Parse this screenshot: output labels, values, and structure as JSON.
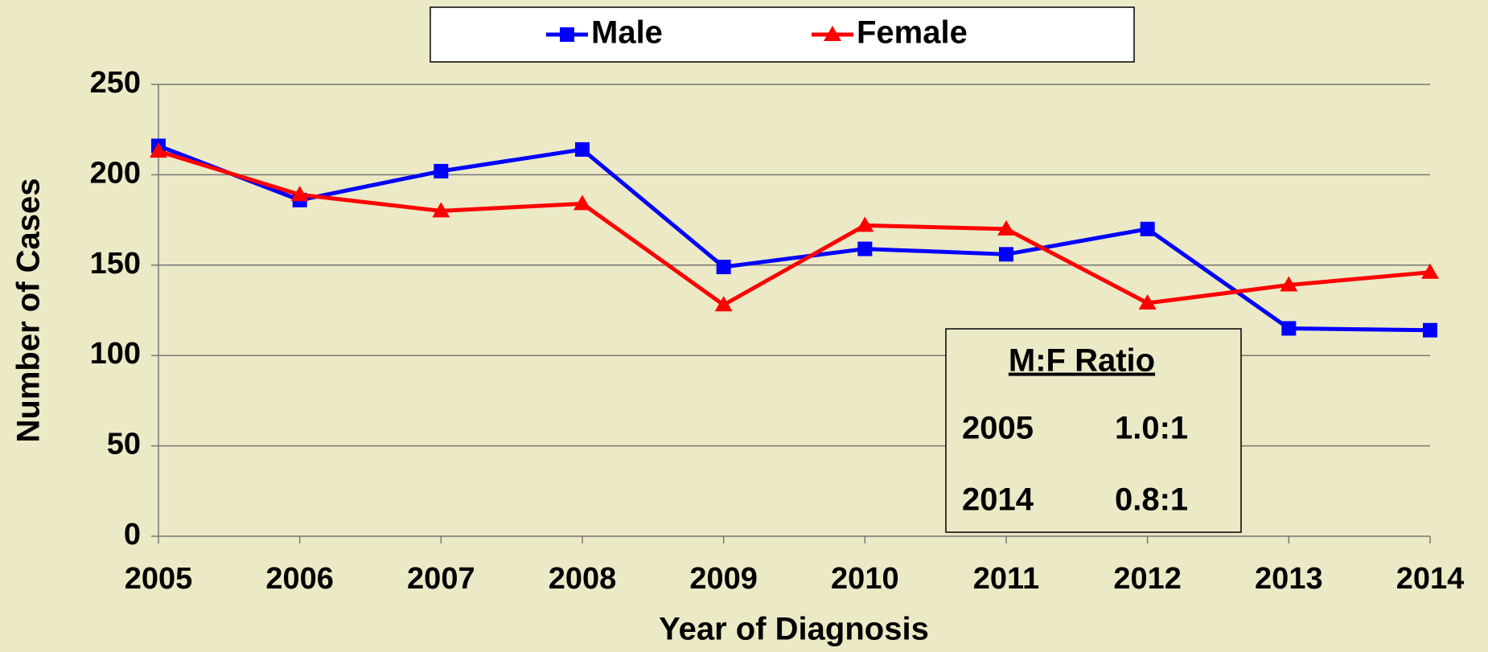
{
  "chart_data": {
    "type": "line",
    "x_label": "Year of Diagnosis",
    "y_label": "Number of Cases",
    "categories": [
      "2005",
      "2006",
      "2007",
      "2008",
      "2009",
      "2010",
      "2011",
      "2012",
      "2013",
      "2014"
    ],
    "series": [
      {
        "name": "Male",
        "color": "#0000FF",
        "marker": "square",
        "values": [
          216,
          186,
          202,
          214,
          149,
          159,
          156,
          170,
          115,
          114
        ]
      },
      {
        "name": "Female",
        "color": "#FF0000",
        "marker": "triangle",
        "values": [
          213,
          189,
          180,
          184,
          128,
          172,
          170,
          129,
          139,
          146
        ]
      }
    ],
    "ylim": [
      0,
      250
    ],
    "yticks": [
      0,
      50,
      100,
      150,
      200,
      250
    ],
    "grid": true,
    "legend": "top",
    "annotation_table": {
      "title": "M:F Ratio",
      "rows": [
        [
          "2005",
          "1.0:1"
        ],
        [
          "2014",
          "0.8:1"
        ]
      ]
    }
  }
}
